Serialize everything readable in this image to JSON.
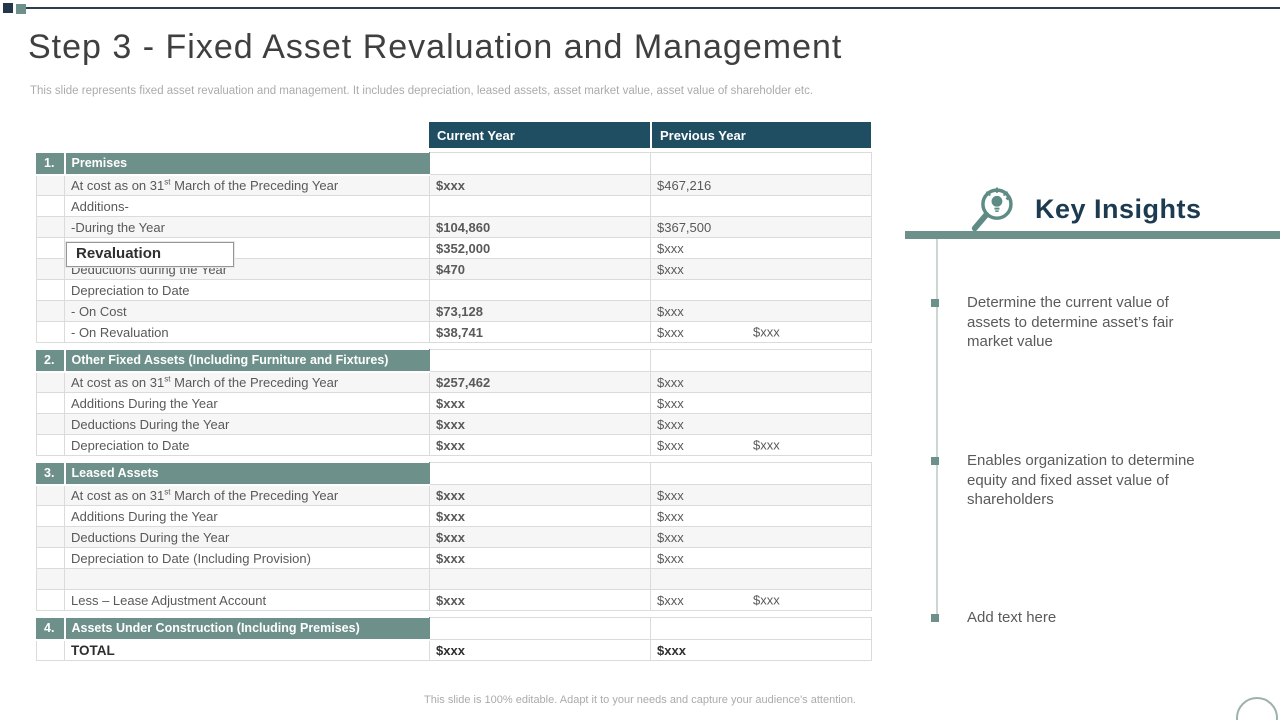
{
  "slide": {
    "title": "Step 3 - Fixed Asset Revaluation and Management",
    "subtitle": "This slide represents fixed asset revaluation and management. It includes depreciation, leased assets, asset market value, asset value of shareholder etc.",
    "footer": "This slide is 100% editable. Adapt it to your needs and capture your audience's attention."
  },
  "colors": {
    "column_header_bg": "#1F4E63",
    "section_header_bg": "#6D908A",
    "accent_dark": "#243649",
    "accent_green": "#6D908A"
  },
  "table": {
    "columns": [
      "Current Year",
      "Previous Year"
    ],
    "sections": [
      {
        "num": "1.",
        "title": "Premises",
        "rows": [
          {
            "label": "At cost as on 31^{st} March of the Preceding Year",
            "cur": "$xxx",
            "prev": "$467,216"
          },
          {
            "label": "Additions-",
            "cur": "",
            "prev": ""
          },
          {
            "label": "-During the Year",
            "cur": "$104,860",
            "prev": "$367,500"
          },
          {
            "label": "",
            "boxed": true,
            "cur": "$352,000",
            "prev": "$xxx"
          },
          {
            "label": "Deductions during the Year",
            "cur": "$470",
            "prev": "$xxx"
          },
          {
            "label": "Depreciation to Date",
            "cur": "",
            "prev": ""
          },
          {
            "label": "- On Cost",
            "cur": "$73,128",
            "prev": "$xxx"
          },
          {
            "label": "- On Revaluation",
            "cur": "$38,741",
            "prev": "$xxx",
            "prev2": "$xxx"
          }
        ]
      },
      {
        "num": "2.",
        "title": "Other Fixed Assets (Including Furniture and Fixtures)",
        "rows": [
          {
            "label": "At cost as on 31^{st} March of the Preceding Year",
            "cur": "$257,462",
            "prev": "$xxx"
          },
          {
            "label": "Additions During the Year",
            "cur": "$xxx",
            "prev": "$xxx"
          },
          {
            "label": "Deductions During the Year",
            "cur": "$xxx",
            "prev": "$xxx"
          },
          {
            "label": "Depreciation to Date",
            "cur": "$xxx",
            "prev": "$xxx",
            "prev2": "$xxx"
          }
        ]
      },
      {
        "num": "3.",
        "title": "Leased Assets",
        "rows": [
          {
            "label": "At cost as on 31^{st} March of the Preceding Year",
            "cur": "$xxx",
            "prev": "$xxx"
          },
          {
            "label": "Additions During the Year",
            "cur": "$xxx",
            "prev": "$xxx"
          },
          {
            "label": "Deductions During the Year",
            "cur": "$xxx",
            "prev": "$xxx"
          },
          {
            "label": "Depreciation to Date (Including Provision)",
            "cur": "$xxx",
            "prev": "$xxx"
          },
          {
            "label": "",
            "cur": "",
            "prev": ""
          },
          {
            "label": "Less – Lease Adjustment Account",
            "cur": "$xxx",
            "prev": "$xxx",
            "prev2": "$xxx"
          }
        ]
      },
      {
        "num": "4.",
        "title": "Assets Under Construction (Including Premises)",
        "rows": [
          {
            "label": "TOTAL",
            "total": true,
            "cur": "$xxx",
            "prev": "$xxx"
          }
        ]
      }
    ]
  },
  "revaluation_box": {
    "label": "Revaluation"
  },
  "key_insights": {
    "title": "Key Insights",
    "icon": "magnifier-lightbulb-icon",
    "bullets": [
      "Determine the current value of assets to determine asset’s fair market value",
      "Enables organization to determine equity and fixed asset value of shareholders",
      "Add text here"
    ]
  }
}
